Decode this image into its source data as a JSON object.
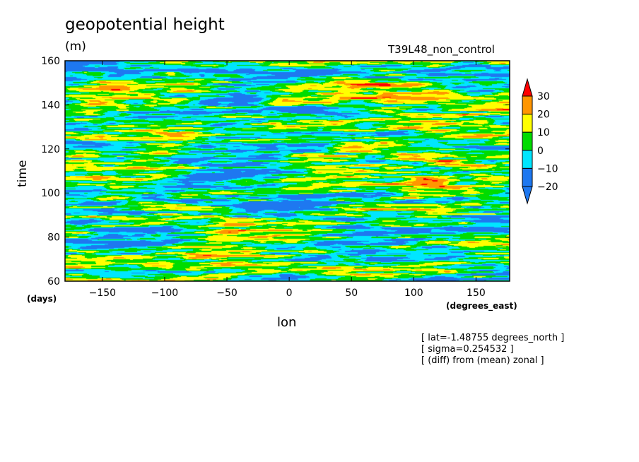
{
  "header": {
    "title": "geopotential height",
    "units": "(m)",
    "subtitle": "T39L48_non_control"
  },
  "notes": [
    "[ lat=-1.48755 degrees_north ]",
    "[ sigma=0.254532 ]",
    "[ (diff) from (mean) zonal ]"
  ],
  "chart_data": {
    "type": "heatmap",
    "title": "geopotential height",
    "xlabel": "lon",
    "xunits": "(degrees_east)",
    "ylabel": "time",
    "yunits": "(days)",
    "xlim": [
      -180,
      177
    ],
    "ylim": [
      60,
      160
    ],
    "x_ticks": [
      -150,
      -100,
      -50,
      0,
      50,
      100,
      150
    ],
    "y_ticks": [
      60,
      80,
      100,
      120,
      140,
      160
    ],
    "colorbar": {
      "levels": [
        -20,
        -10,
        0,
        10,
        20,
        30
      ],
      "labels": [
        "30",
        "20",
        "10",
        "0",
        "-10",
        "-20"
      ],
      "colors": [
        "#1e78f0",
        "#00e6ff",
        "#00dc00",
        "#ffff00",
        "#ff9600",
        "#ff0000"
      ]
    },
    "field_description": "Hovmoller diagram of zonal anomaly; values range roughly below -20 to above 30"
  }
}
